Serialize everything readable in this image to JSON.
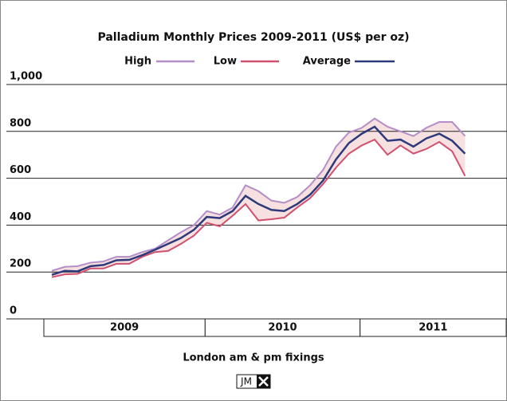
{
  "chart_data": {
    "type": "line",
    "title": "Palladium Monthly Prices 2009-2011 (US$ per oz)",
    "x_label": "London am & pm fixings",
    "logo": "JM",
    "categories": [
      "2009",
      null,
      null,
      null,
      null,
      null,
      null,
      null,
      null,
      null,
      null,
      null,
      "2010",
      null,
      null,
      null,
      null,
      null,
      null,
      null,
      null,
      null,
      null,
      null,
      "2011",
      null,
      null,
      null,
      null,
      null,
      null,
      null,
      null
    ],
    "series": [
      {
        "name": "High",
        "color": "#b48ec8",
        "values": [
          205,
          222,
          225,
          240,
          245,
          265,
          265,
          285,
          300,
          335,
          370,
          400,
          460,
          445,
          475,
          570,
          545,
          505,
          495,
          520,
          570,
          635,
          735,
          795,
          815,
          855,
          820,
          800,
          780,
          815,
          840,
          840,
          780
        ]
      },
      {
        "name": "Low",
        "color": "#d05070",
        "values": [
          178,
          190,
          192,
          215,
          215,
          235,
          235,
          265,
          285,
          290,
          320,
          355,
          410,
          395,
          440,
          490,
          420,
          425,
          432,
          475,
          515,
          575,
          645,
          705,
          740,
          765,
          700,
          740,
          705,
          725,
          755,
          715,
          610
        ]
      },
      {
        "name": "Average",
        "color": "#2c3a7c",
        "values": [
          188,
          205,
          203,
          225,
          230,
          250,
          252,
          272,
          295,
          320,
          345,
          380,
          435,
          430,
          460,
          525,
          490,
          465,
          460,
          490,
          530,
          590,
          680,
          750,
          790,
          820,
          760,
          765,
          735,
          770,
          790,
          760,
          705
        ]
      }
    ],
    "band_color": "#f7e0e0",
    "ylim": [
      0,
      1000
    ],
    "yticks": [
      0,
      200,
      400,
      600,
      800,
      {
        "value": 1000,
        "label": "1,000"
      }
    ],
    "grid": true
  }
}
